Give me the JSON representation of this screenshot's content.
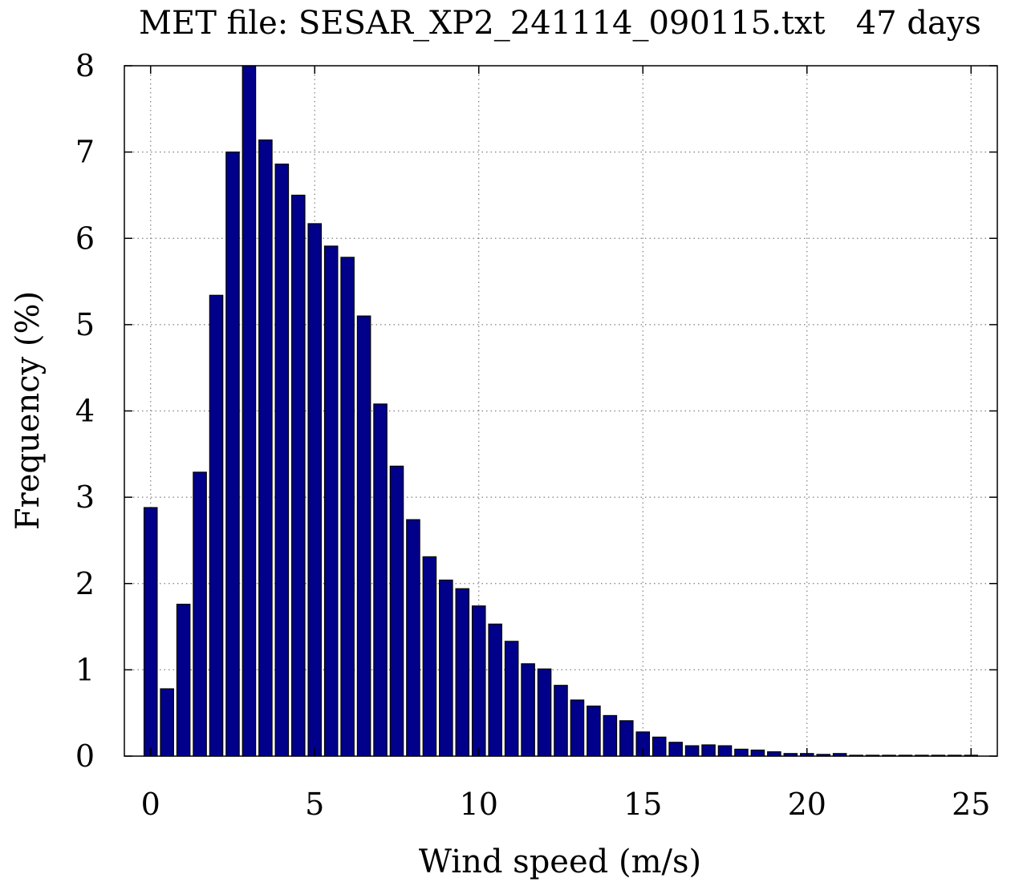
{
  "chart_data": {
    "type": "bar",
    "title": "MET file: SESAR_XP2_241114_090115.txt   47 days",
    "xlabel": "Wind speed (m/s)",
    "ylabel": "Frequency (%)",
    "xlim": [
      -0.8,
      25.8
    ],
    "ylim": [
      0,
      8
    ],
    "xticks": [
      0,
      5,
      10,
      15,
      20,
      25
    ],
    "yticks": [
      0,
      1,
      2,
      3,
      4,
      5,
      6,
      7,
      8
    ],
    "grid": true,
    "legend": "none",
    "bar_width": 0.4,
    "colors": {
      "bar": "#00008b",
      "grid": "#7f7f7f"
    },
    "x": [
      0,
      0.5,
      1,
      1.5,
      2,
      2.5,
      3,
      3.5,
      4,
      4.5,
      5,
      5.5,
      6,
      6.5,
      7,
      7.5,
      8,
      8.5,
      9,
      9.5,
      10,
      10.5,
      11,
      11.5,
      12,
      12.5,
      13,
      13.5,
      14,
      14.5,
      15,
      15.5,
      16,
      16.5,
      17,
      17.5,
      18,
      18.5,
      19,
      19.5,
      20,
      20.5,
      21,
      21.5,
      22,
      22.5,
      23,
      23.5,
      24,
      24.5,
      25
    ],
    "values": [
      2.88,
      0.78,
      1.76,
      3.29,
      5.34,
      7.0,
      8.0,
      7.14,
      6.86,
      6.5,
      6.17,
      5.91,
      5.78,
      5.1,
      4.08,
      3.36,
      2.74,
      2.31,
      2.04,
      1.94,
      1.74,
      1.53,
      1.33,
      1.07,
      1.01,
      0.82,
      0.65,
      0.58,
      0.47,
      0.41,
      0.28,
      0.22,
      0.16,
      0.12,
      0.13,
      0.12,
      0.08,
      0.07,
      0.05,
      0.03,
      0.03,
      0.02,
      0.03,
      0.01,
      0.01,
      0.01,
      0.01,
      0.01,
      0.01,
      0.01,
      0.01
    ]
  }
}
